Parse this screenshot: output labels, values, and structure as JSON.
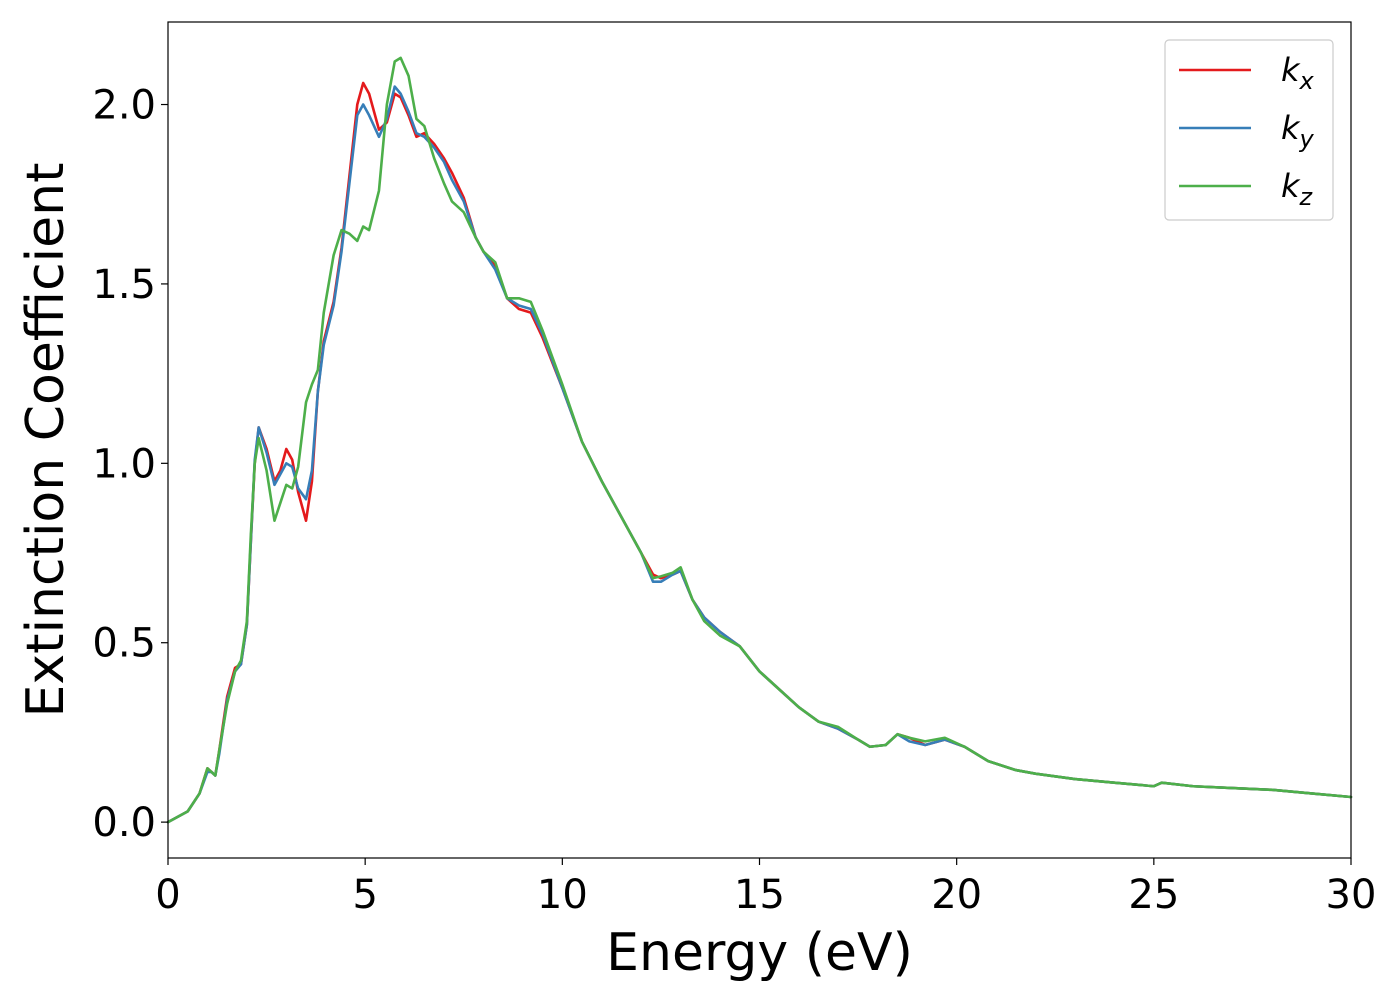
{
  "chart_data": {
    "type": "line",
    "title": "",
    "xlabel": "Energy (eV)",
    "ylabel": "Extinction Coefficient",
    "xlim": [
      0,
      30
    ],
    "ylim": [
      -0.1,
      2.23
    ],
    "xticks": [
      0,
      5,
      10,
      15,
      20,
      25,
      30
    ],
    "xtick_labels": [
      "0",
      "5",
      "10",
      "15",
      "20",
      "25",
      "30"
    ],
    "yticks": [
      0.0,
      0.5,
      1.0,
      1.5,
      2.0
    ],
    "ytick_labels": [
      "0.0",
      "0.5",
      "1.0",
      "1.5",
      "2.0"
    ],
    "grid": false,
    "legend_position": "top-right",
    "series": [
      {
        "name": "k_x",
        "label_main": "k",
        "label_sub": "x",
        "color": "#e41a1c",
        "points": [
          [
            0,
            0
          ],
          [
            0.5,
            0.03
          ],
          [
            0.8,
            0.08
          ],
          [
            1.0,
            0.15
          ],
          [
            1.1,
            0.14
          ],
          [
            1.2,
            0.13
          ],
          [
            1.3,
            0.2
          ],
          [
            1.5,
            0.35
          ],
          [
            1.7,
            0.43
          ],
          [
            1.85,
            0.44
          ],
          [
            2.0,
            0.55
          ],
          [
            2.1,
            0.78
          ],
          [
            2.2,
            1.0
          ],
          [
            2.3,
            1.1
          ],
          [
            2.5,
            1.04
          ],
          [
            2.7,
            0.95
          ],
          [
            2.85,
            0.98
          ],
          [
            3.0,
            1.04
          ],
          [
            3.15,
            1.01
          ],
          [
            3.3,
            0.92
          ],
          [
            3.5,
            0.84
          ],
          [
            3.65,
            0.95
          ],
          [
            3.8,
            1.2
          ],
          [
            3.95,
            1.34
          ],
          [
            4.2,
            1.45
          ],
          [
            4.4,
            1.6
          ],
          [
            4.6,
            1.8
          ],
          [
            4.8,
            2.0
          ],
          [
            4.95,
            2.06
          ],
          [
            5.1,
            2.03
          ],
          [
            5.35,
            1.93
          ],
          [
            5.55,
            1.95
          ],
          [
            5.75,
            2.03
          ],
          [
            5.9,
            2.02
          ],
          [
            6.1,
            1.97
          ],
          [
            6.3,
            1.91
          ],
          [
            6.5,
            1.92
          ],
          [
            6.75,
            1.89
          ],
          [
            7.0,
            1.85
          ],
          [
            7.2,
            1.81
          ],
          [
            7.5,
            1.74
          ],
          [
            7.8,
            1.63
          ],
          [
            8.0,
            1.59
          ],
          [
            8.3,
            1.55
          ],
          [
            8.6,
            1.46
          ],
          [
            8.9,
            1.43
          ],
          [
            9.2,
            1.42
          ],
          [
            9.5,
            1.35
          ],
          [
            10,
            1.21
          ],
          [
            10.5,
            1.06
          ],
          [
            11,
            0.95
          ],
          [
            11.5,
            0.85
          ],
          [
            12,
            0.75
          ],
          [
            12.3,
            0.69
          ],
          [
            12.5,
            0.68
          ],
          [
            12.8,
            0.69
          ],
          [
            13.0,
            0.7
          ],
          [
            13.3,
            0.62
          ],
          [
            13.6,
            0.57
          ],
          [
            14,
            0.53
          ],
          [
            14.5,
            0.49
          ],
          [
            15,
            0.42
          ],
          [
            15.5,
            0.37
          ],
          [
            16,
            0.32
          ],
          [
            16.5,
            0.28
          ],
          [
            17,
            0.26
          ],
          [
            17.5,
            0.23
          ],
          [
            17.8,
            0.21
          ],
          [
            18.2,
            0.215
          ],
          [
            18.5,
            0.245
          ],
          [
            18.8,
            0.235
          ],
          [
            19.2,
            0.215
          ],
          [
            19.7,
            0.23
          ],
          [
            20.2,
            0.21
          ],
          [
            20.8,
            0.17
          ],
          [
            21.5,
            0.145
          ],
          [
            22,
            0.135
          ],
          [
            23,
            0.12
          ],
          [
            24,
            0.11
          ],
          [
            25,
            0.1
          ],
          [
            25.2,
            0.11
          ],
          [
            26,
            0.1
          ],
          [
            27,
            0.095
          ],
          [
            28,
            0.09
          ],
          [
            29,
            0.08
          ],
          [
            30,
            0.07
          ]
        ]
      },
      {
        "name": "k_y",
        "label_main": "k",
        "label_sub": "y",
        "color": "#377eb8",
        "points": [
          [
            0,
            0
          ],
          [
            0.5,
            0.03
          ],
          [
            0.8,
            0.08
          ],
          [
            1.0,
            0.14
          ],
          [
            1.1,
            0.14
          ],
          [
            1.2,
            0.13
          ],
          [
            1.3,
            0.19
          ],
          [
            1.5,
            0.34
          ],
          [
            1.7,
            0.42
          ],
          [
            1.85,
            0.44
          ],
          [
            2.0,
            0.55
          ],
          [
            2.1,
            0.78
          ],
          [
            2.2,
            1.01
          ],
          [
            2.3,
            1.1
          ],
          [
            2.5,
            1.03
          ],
          [
            2.7,
            0.94
          ],
          [
            2.85,
            0.97
          ],
          [
            3.0,
            1.0
          ],
          [
            3.15,
            0.99
          ],
          [
            3.3,
            0.93
          ],
          [
            3.5,
            0.9
          ],
          [
            3.65,
            0.98
          ],
          [
            3.8,
            1.2
          ],
          [
            3.95,
            1.33
          ],
          [
            4.2,
            1.44
          ],
          [
            4.4,
            1.59
          ],
          [
            4.6,
            1.78
          ],
          [
            4.8,
            1.97
          ],
          [
            4.95,
            2.0
          ],
          [
            5.1,
            1.97
          ],
          [
            5.35,
            1.91
          ],
          [
            5.55,
            1.96
          ],
          [
            5.75,
            2.05
          ],
          [
            5.9,
            2.03
          ],
          [
            6.1,
            1.98
          ],
          [
            6.3,
            1.92
          ],
          [
            6.5,
            1.91
          ],
          [
            6.75,
            1.88
          ],
          [
            7.0,
            1.84
          ],
          [
            7.2,
            1.79
          ],
          [
            7.5,
            1.73
          ],
          [
            7.8,
            1.63
          ],
          [
            8.0,
            1.59
          ],
          [
            8.3,
            1.54
          ],
          [
            8.6,
            1.46
          ],
          [
            8.9,
            1.44
          ],
          [
            9.2,
            1.43
          ],
          [
            9.5,
            1.36
          ],
          [
            10,
            1.21
          ],
          [
            10.5,
            1.06
          ],
          [
            11,
            0.95
          ],
          [
            11.5,
            0.85
          ],
          [
            12,
            0.75
          ],
          [
            12.3,
            0.67
          ],
          [
            12.5,
            0.67
          ],
          [
            12.8,
            0.69
          ],
          [
            13.0,
            0.7
          ],
          [
            13.3,
            0.62
          ],
          [
            13.6,
            0.57
          ],
          [
            14,
            0.53
          ],
          [
            14.5,
            0.49
          ],
          [
            15,
            0.42
          ],
          [
            15.5,
            0.37
          ],
          [
            16,
            0.32
          ],
          [
            16.5,
            0.28
          ],
          [
            17,
            0.26
          ],
          [
            17.5,
            0.23
          ],
          [
            17.8,
            0.21
          ],
          [
            18.2,
            0.215
          ],
          [
            18.5,
            0.245
          ],
          [
            18.8,
            0.225
          ],
          [
            19.2,
            0.215
          ],
          [
            19.7,
            0.23
          ],
          [
            20.2,
            0.21
          ],
          [
            20.8,
            0.17
          ],
          [
            21.5,
            0.145
          ],
          [
            22,
            0.135
          ],
          [
            23,
            0.12
          ],
          [
            24,
            0.11
          ],
          [
            25,
            0.1
          ],
          [
            25.2,
            0.11
          ],
          [
            26,
            0.1
          ],
          [
            27,
            0.095
          ],
          [
            28,
            0.09
          ],
          [
            29,
            0.08
          ],
          [
            30,
            0.07
          ]
        ]
      },
      {
        "name": "k_z",
        "label_main": "k",
        "label_sub": "z",
        "color": "#4daf4a",
        "points": [
          [
            0,
            0
          ],
          [
            0.5,
            0.03
          ],
          [
            0.8,
            0.08
          ],
          [
            1.0,
            0.15
          ],
          [
            1.1,
            0.14
          ],
          [
            1.2,
            0.13
          ],
          [
            1.3,
            0.2
          ],
          [
            1.5,
            0.33
          ],
          [
            1.7,
            0.42
          ],
          [
            1.85,
            0.45
          ],
          [
            2.0,
            0.56
          ],
          [
            2.1,
            0.8
          ],
          [
            2.2,
            1.0
          ],
          [
            2.3,
            1.07
          ],
          [
            2.5,
            0.98
          ],
          [
            2.7,
            0.84
          ],
          [
            2.85,
            0.89
          ],
          [
            3.0,
            0.94
          ],
          [
            3.15,
            0.93
          ],
          [
            3.3,
            0.99
          ],
          [
            3.5,
            1.17
          ],
          [
            3.65,
            1.22
          ],
          [
            3.8,
            1.26
          ],
          [
            3.95,
            1.42
          ],
          [
            4.2,
            1.58
          ],
          [
            4.4,
            1.65
          ],
          [
            4.6,
            1.64
          ],
          [
            4.8,
            1.62
          ],
          [
            4.95,
            1.66
          ],
          [
            5.1,
            1.65
          ],
          [
            5.35,
            1.76
          ],
          [
            5.55,
            2.0
          ],
          [
            5.75,
            2.12
          ],
          [
            5.9,
            2.13
          ],
          [
            6.1,
            2.08
          ],
          [
            6.3,
            1.96
          ],
          [
            6.5,
            1.94
          ],
          [
            6.75,
            1.85
          ],
          [
            7.0,
            1.78
          ],
          [
            7.2,
            1.73
          ],
          [
            7.5,
            1.7
          ],
          [
            7.8,
            1.63
          ],
          [
            8.0,
            1.59
          ],
          [
            8.3,
            1.56
          ],
          [
            8.6,
            1.46
          ],
          [
            8.9,
            1.46
          ],
          [
            9.2,
            1.45
          ],
          [
            9.5,
            1.37
          ],
          [
            10,
            1.22
          ],
          [
            10.5,
            1.06
          ],
          [
            11,
            0.95
          ],
          [
            11.5,
            0.85
          ],
          [
            12,
            0.75
          ],
          [
            12.3,
            0.68
          ],
          [
            12.5,
            0.685
          ],
          [
            12.8,
            0.695
          ],
          [
            13.0,
            0.71
          ],
          [
            13.3,
            0.62
          ],
          [
            13.6,
            0.56
          ],
          [
            14,
            0.52
          ],
          [
            14.5,
            0.49
          ],
          [
            15,
            0.42
          ],
          [
            15.5,
            0.37
          ],
          [
            16,
            0.32
          ],
          [
            16.5,
            0.28
          ],
          [
            17,
            0.265
          ],
          [
            17.5,
            0.23
          ],
          [
            17.8,
            0.21
          ],
          [
            18.2,
            0.215
          ],
          [
            18.5,
            0.245
          ],
          [
            18.8,
            0.235
          ],
          [
            19.2,
            0.225
          ],
          [
            19.7,
            0.235
          ],
          [
            20.2,
            0.21
          ],
          [
            20.8,
            0.17
          ],
          [
            21.5,
            0.145
          ],
          [
            22,
            0.135
          ],
          [
            23,
            0.12
          ],
          [
            24,
            0.11
          ],
          [
            25,
            0.1
          ],
          [
            25.2,
            0.11
          ],
          [
            26,
            0.1
          ],
          [
            27,
            0.095
          ],
          [
            28,
            0.09
          ],
          [
            29,
            0.08
          ],
          [
            30,
            0.07
          ]
        ]
      }
    ]
  }
}
